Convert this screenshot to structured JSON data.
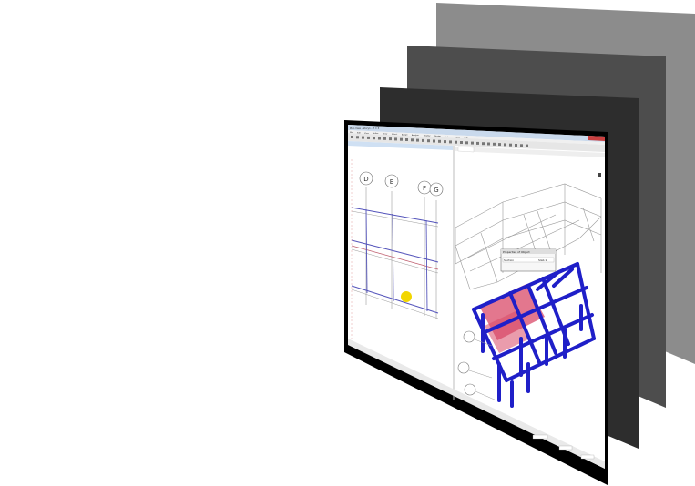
{
  "app": {
    "menu_items": [
      "File",
      "Edit",
      "View",
      "Define",
      "Draw",
      "Select",
      "Assign",
      "Analyze",
      "Display",
      "Design",
      "Options",
      "Tools",
      "Help"
    ],
    "grid_labels": [
      "D",
      "E",
      "F",
      "G"
    ],
    "property_popup": {
      "title": "Properties of Object",
      "row_label": "Section",
      "row_value": "Slab 1"
    }
  },
  "colors": {
    "layer_back": "#8c8c8c",
    "layer_mid": "#4d4d4d",
    "layer_front": "#2d2d2d",
    "frame_members": "#1f1fc8",
    "slab_fill": "#d94a68",
    "highlight_marker": "#f2d600"
  }
}
